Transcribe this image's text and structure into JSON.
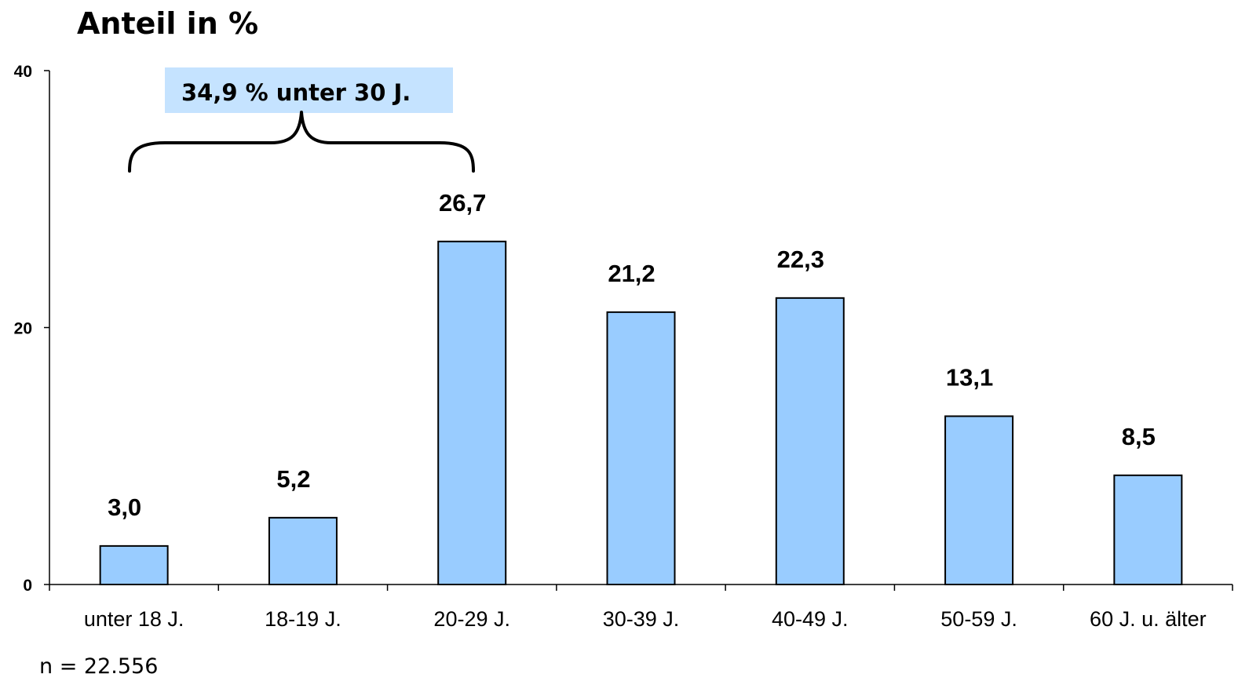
{
  "chart_data": {
    "type": "bar",
    "title": "Anteil in %",
    "categories": [
      "unter 18 J.",
      "18-19 J.",
      "20-29 J.",
      "30-39 J.",
      "40-49 J.",
      "50-59 J.",
      "60 J. u. älter"
    ],
    "values": [
      3.0,
      5.2,
      26.7,
      21.2,
      22.3,
      13.1,
      8.5
    ],
    "value_labels": [
      "3,0",
      "5,2",
      "26,7",
      "21,2",
      "22,3",
      "13,1",
      "8,5"
    ],
    "ylim": [
      0,
      40
    ],
    "yticks": [
      0,
      20,
      40
    ],
    "ytick_labels": [
      "0",
      "20",
      "40"
    ],
    "xlabel": "",
    "ylabel": "",
    "grid": false,
    "bar_color": "#99CCFF",
    "annotation": {
      "text": "34,9 % unter 30 J.",
      "spans_categories": [
        "unter 18 J.",
        "18-19 J.",
        "20-29 J."
      ],
      "box_color": "#C5E3FF"
    },
    "note": "n = 22.556"
  }
}
